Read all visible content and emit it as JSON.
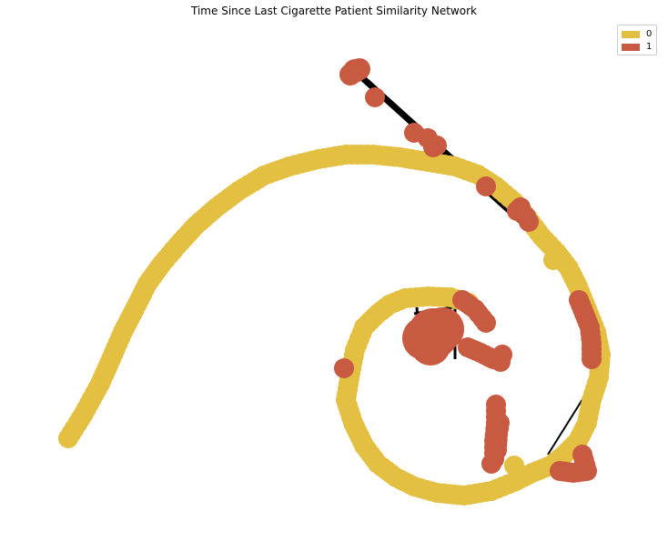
{
  "title": "Time Since Last Cigarette Patient Similarity Network",
  "colors": {
    "group0": "#e3bf42",
    "group1": "#c85a42",
    "edge": "#000000"
  },
  "legend": [
    {
      "label": "0",
      "color": "#e3bf42"
    },
    {
      "label": "1",
      "color": "#c85a42"
    }
  ]
}
